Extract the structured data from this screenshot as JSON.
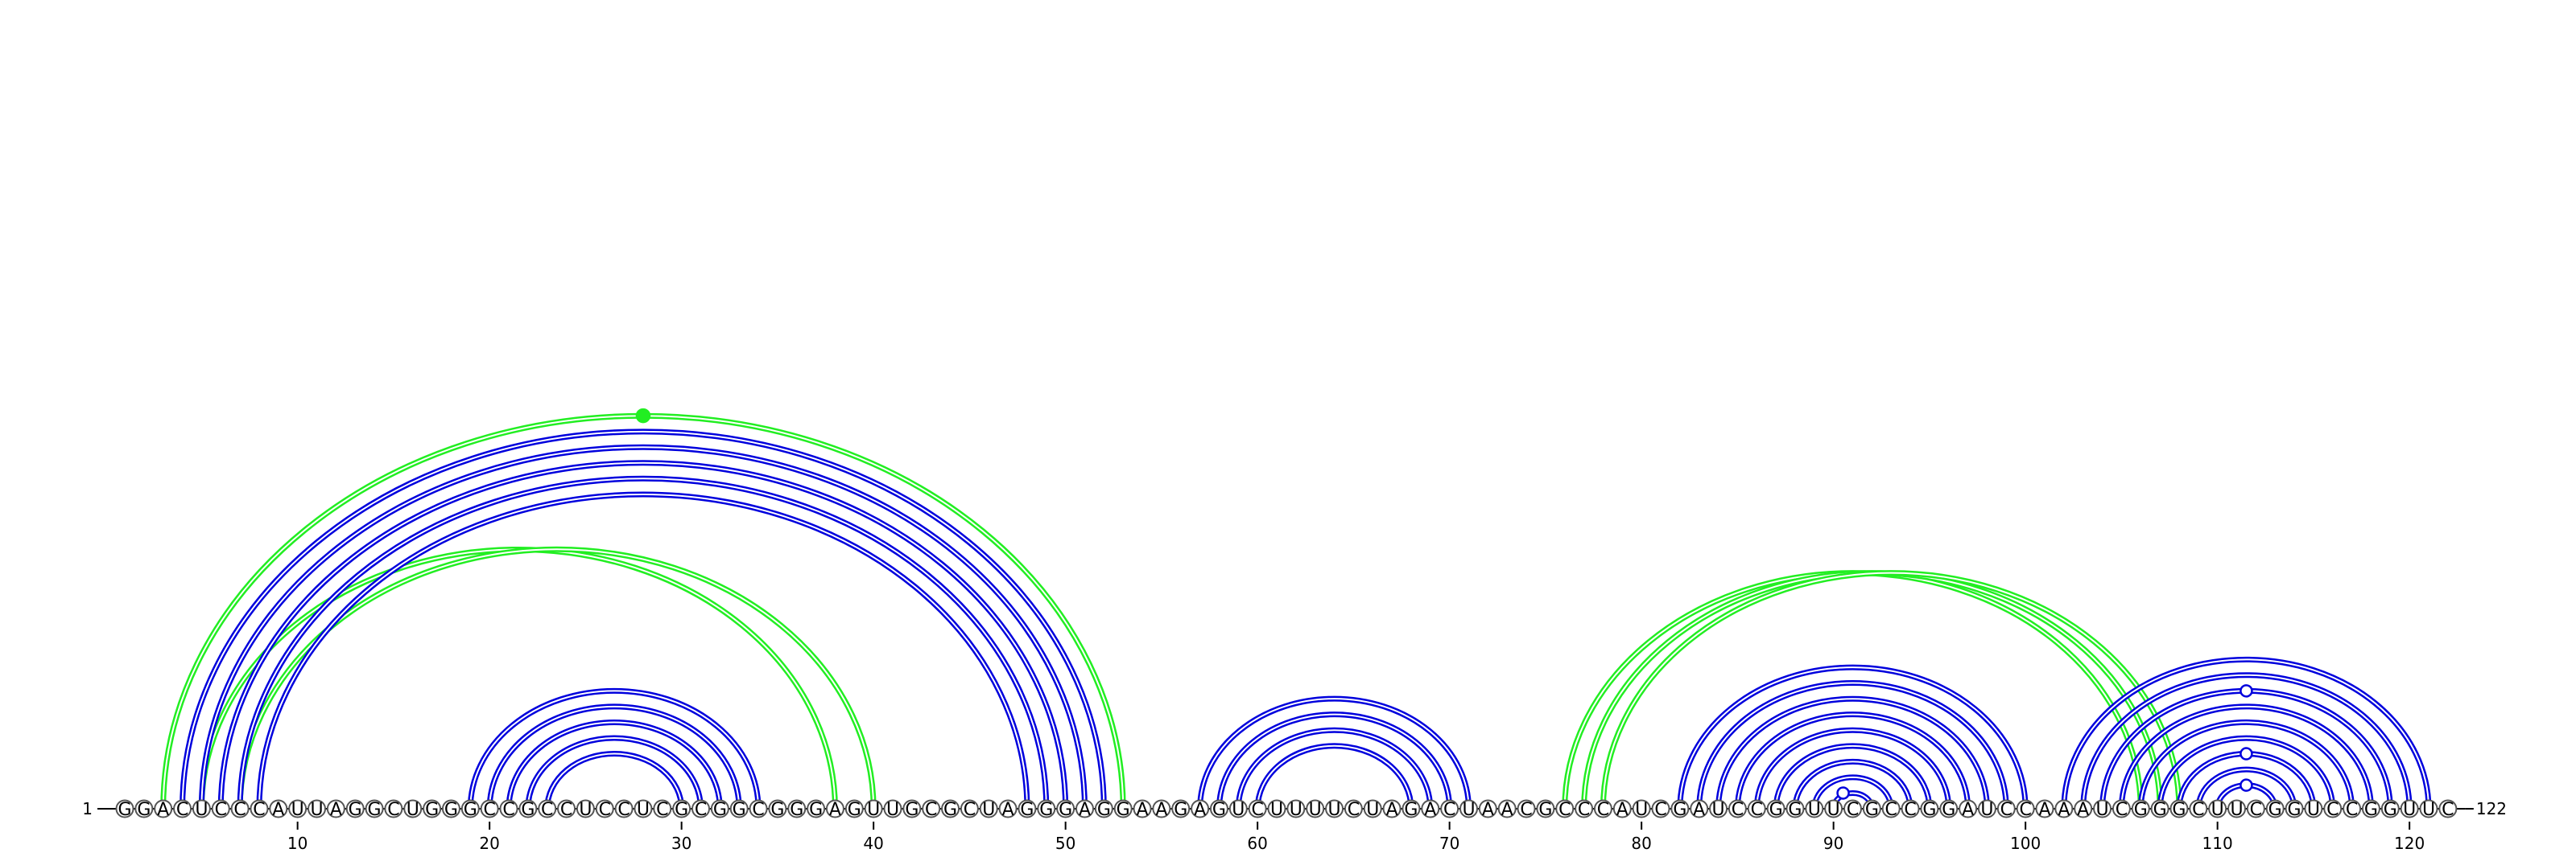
{
  "diagram": {
    "start_label": "1",
    "end_label": "122",
    "sequence": "GGACUCCCAUUAGGCUGGGCCGCCUCCUCGCGGCGGGAGUUGCGCUAGGGAGGAAGAGUCUUUUCUAGACUAACGCCCAUCGAUCCGGUUCGCCGGAUCCAAAUCGGGCUUCGGUCCGGUUC",
    "ticks": [
      10,
      20,
      30,
      40,
      50,
      60,
      70,
      80,
      90,
      100,
      110,
      120
    ],
    "colors": {
      "blue": "#0000dd",
      "green": "#22ee22"
    },
    "arcs": [
      {
        "i": 3,
        "j": 53,
        "color": "green"
      },
      {
        "i": 5,
        "j": 38,
        "color": "green"
      },
      {
        "i": 7,
        "j": 40,
        "color": "green"
      },
      {
        "i": 4,
        "j": 52,
        "color": "blue"
      },
      {
        "i": 5,
        "j": 51,
        "color": "blue"
      },
      {
        "i": 6,
        "j": 50,
        "color": "blue"
      },
      {
        "i": 7,
        "j": 49,
        "color": "blue"
      },
      {
        "i": 8,
        "j": 48,
        "color": "blue"
      },
      {
        "i": 19,
        "j": 34,
        "color": "blue"
      },
      {
        "i": 20,
        "j": 33,
        "color": "blue"
      },
      {
        "i": 21,
        "j": 32,
        "color": "blue"
      },
      {
        "i": 22,
        "j": 31,
        "color": "blue"
      },
      {
        "i": 23,
        "j": 30,
        "color": "blue"
      },
      {
        "i": 57,
        "j": 71,
        "color": "blue"
      },
      {
        "i": 58,
        "j": 70,
        "color": "blue"
      },
      {
        "i": 59,
        "j": 69,
        "color": "blue"
      },
      {
        "i": 60,
        "j": 68,
        "color": "blue"
      },
      {
        "i": 76,
        "j": 106,
        "color": "green"
      },
      {
        "i": 77,
        "j": 107,
        "color": "green"
      },
      {
        "i": 78,
        "j": 108,
        "color": "green"
      },
      {
        "i": 82,
        "j": 100,
        "color": "blue"
      },
      {
        "i": 83,
        "j": 99,
        "color": "blue"
      },
      {
        "i": 84,
        "j": 98,
        "color": "blue"
      },
      {
        "i": 85,
        "j": 97,
        "color": "blue"
      },
      {
        "i": 86,
        "j": 96,
        "color": "blue"
      },
      {
        "i": 87,
        "j": 95,
        "color": "blue"
      },
      {
        "i": 88,
        "j": 94,
        "color": "blue"
      },
      {
        "i": 89,
        "j": 93,
        "color": "blue"
      },
      {
        "i": 90,
        "j": 92,
        "color": "blue"
      },
      {
        "i": 102,
        "j": 121,
        "color": "blue"
      },
      {
        "i": 103,
        "j": 120,
        "color": "blue"
      },
      {
        "i": 104,
        "j": 119,
        "color": "blue"
      },
      {
        "i": 105,
        "j": 118,
        "color": "blue"
      },
      {
        "i": 106,
        "j": 117,
        "color": "blue"
      },
      {
        "i": 107,
        "j": 116,
        "color": "blue"
      },
      {
        "i": 108,
        "j": 115,
        "color": "blue"
      },
      {
        "i": 109,
        "j": 114,
        "color": "blue"
      },
      {
        "i": 110,
        "j": 113,
        "color": "blue"
      }
    ],
    "markers": [
      {
        "pos": 28,
        "arc": 0,
        "color": "green",
        "filled": true
      },
      {
        "pos": 90.5,
        "arc": 28,
        "color": "blue",
        "filled": false
      },
      {
        "pos": 111.5,
        "arc": 31,
        "color": "blue",
        "filled": false
      },
      {
        "pos": 111.5,
        "arc": 35,
        "color": "blue",
        "filled": false
      },
      {
        "pos": 111.5,
        "arc": 37,
        "color": "blue",
        "filled": false
      }
    ]
  }
}
